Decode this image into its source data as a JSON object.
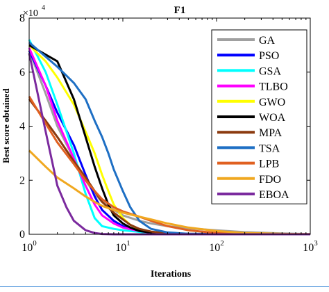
{
  "chart_data": {
    "type": "line",
    "title": "F1",
    "xlabel": "Iterations",
    "ylabel": "Best score obtained",
    "x_scale": "log",
    "xlim": [
      1,
      1000
    ],
    "ylim": [
      0,
      80000
    ],
    "x_ticks": [
      {
        "value": 1,
        "base": "10",
        "exp": "0"
      },
      {
        "value": 10,
        "base": "10",
        "exp": "1"
      },
      {
        "value": 100,
        "base": "10",
        "exp": "2"
      },
      {
        "value": 1000,
        "base": "10",
        "exp": "3"
      }
    ],
    "y_ticks": [
      {
        "value": 0,
        "label": "0"
      },
      {
        "value": 20000,
        "label": "2"
      },
      {
        "value": 40000,
        "label": "4"
      },
      {
        "value": 60000,
        "label": "6"
      },
      {
        "value": 80000,
        "label": "8"
      }
    ],
    "y_multiplier": {
      "base": "×10",
      "exp": "4"
    },
    "legend_position": "top-right",
    "grid": false,
    "series": [
      {
        "name": "GA",
        "color": "#a0a0a0",
        "points": [
          [
            1,
            68000
          ],
          [
            1.5,
            52000
          ],
          [
            2,
            40000
          ],
          [
            3,
            28000
          ],
          [
            4,
            20000
          ],
          [
            5,
            15000
          ],
          [
            6,
            12000
          ],
          [
            8,
            9000
          ],
          [
            10,
            7000
          ],
          [
            15,
            5000
          ],
          [
            20,
            4000
          ],
          [
            30,
            3000
          ],
          [
            50,
            2200
          ],
          [
            100,
            1500
          ],
          [
            200,
            800
          ],
          [
            500,
            300
          ],
          [
            1000,
            100
          ]
        ]
      },
      {
        "name": "PSO",
        "color": "#0000ff",
        "points": [
          [
            1,
            68000
          ],
          [
            1.5,
            55000
          ],
          [
            2,
            45000
          ],
          [
            3,
            33000
          ],
          [
            4,
            22000
          ],
          [
            5,
            14000
          ],
          [
            6,
            9000
          ],
          [
            8,
            5000
          ],
          [
            10,
            3000
          ],
          [
            12,
            2000
          ],
          [
            15,
            1000
          ],
          [
            20,
            500
          ],
          [
            30,
            200
          ],
          [
            50,
            100
          ],
          [
            100,
            50
          ],
          [
            1000,
            0
          ]
        ]
      },
      {
        "name": "GSA",
        "color": "#00ffff",
        "points": [
          [
            1,
            72000
          ],
          [
            1.5,
            60000
          ],
          [
            2,
            48000
          ],
          [
            3,
            30000
          ],
          [
            4,
            15000
          ],
          [
            5,
            6000
          ],
          [
            6,
            3000
          ],
          [
            8,
            2000
          ],
          [
            10,
            1500
          ],
          [
            20,
            500
          ],
          [
            50,
            100
          ],
          [
            1000,
            0
          ]
        ]
      },
      {
        "name": "TLBO",
        "color": "#ff00ff",
        "points": [
          [
            1,
            69000
          ],
          [
            1.5,
            55000
          ],
          [
            2,
            42000
          ],
          [
            3,
            28000
          ],
          [
            4,
            18000
          ],
          [
            5,
            11000
          ],
          [
            6,
            7000
          ],
          [
            8,
            4000
          ],
          [
            10,
            2500
          ],
          [
            15,
            1200
          ],
          [
            20,
            600
          ],
          [
            30,
            200
          ],
          [
            50,
            50
          ],
          [
            1000,
            0
          ]
        ]
      },
      {
        "name": "GWO",
        "color": "#ffff00",
        "points": [
          [
            1,
            70000
          ],
          [
            1.5,
            64000
          ],
          [
            2,
            58000
          ],
          [
            3,
            48000
          ],
          [
            4,
            38000
          ],
          [
            5,
            30000
          ],
          [
            6,
            22000
          ],
          [
            7,
            16000
          ],
          [
            8,
            11000
          ],
          [
            10,
            6000
          ],
          [
            12,
            3500
          ],
          [
            15,
            1800
          ],
          [
            20,
            800
          ],
          [
            30,
            300
          ],
          [
            50,
            100
          ],
          [
            1000,
            0
          ]
        ]
      },
      {
        "name": "WOA",
        "color": "#000000",
        "points": [
          [
            1,
            70000
          ],
          [
            2,
            64000
          ],
          [
            3,
            50000
          ],
          [
            4,
            36000
          ],
          [
            5,
            25000
          ],
          [
            6,
            17000
          ],
          [
            7,
            11000
          ],
          [
            8,
            7000
          ],
          [
            10,
            4000
          ],
          [
            12,
            2500
          ],
          [
            15,
            1200
          ],
          [
            20,
            600
          ],
          [
            30,
            200
          ],
          [
            1000,
            0
          ]
        ]
      },
      {
        "name": "MPA",
        "color": "#8b3a0f",
        "points": [
          [
            1,
            50000
          ],
          [
            1.5,
            42000
          ],
          [
            2,
            36000
          ],
          [
            3,
            27000
          ],
          [
            4,
            21000
          ],
          [
            5,
            16000
          ],
          [
            6,
            12000
          ],
          [
            8,
            8000
          ],
          [
            10,
            5500
          ],
          [
            12,
            3500
          ],
          [
            15,
            2000
          ],
          [
            20,
            1000
          ],
          [
            30,
            300
          ],
          [
            50,
            100
          ],
          [
            1000,
            0
          ]
        ]
      },
      {
        "name": "TSA",
        "color": "#1e6fc4",
        "points": [
          [
            1,
            71000
          ],
          [
            2,
            62000
          ],
          [
            3,
            56000
          ],
          [
            4,
            50000
          ],
          [
            5,
            42000
          ],
          [
            6,
            36000
          ],
          [
            7,
            30000
          ],
          [
            8,
            24000
          ],
          [
            10,
            16000
          ],
          [
            12,
            10000
          ],
          [
            15,
            5000
          ],
          [
            20,
            2000
          ],
          [
            30,
            700
          ],
          [
            50,
            200
          ],
          [
            100,
            50
          ],
          [
            1000,
            0
          ]
        ]
      },
      {
        "name": "LPB",
        "color": "#e06020",
        "points": [
          [
            1,
            51000
          ],
          [
            1.5,
            41000
          ],
          [
            2,
            34000
          ],
          [
            3,
            26000
          ],
          [
            4,
            20000
          ],
          [
            5,
            16000
          ],
          [
            6,
            13000
          ],
          [
            8,
            10000
          ],
          [
            10,
            8500
          ],
          [
            15,
            6500
          ],
          [
            20,
            5000
          ],
          [
            30,
            3000
          ],
          [
            50,
            1500
          ],
          [
            100,
            500
          ],
          [
            200,
            150
          ],
          [
            1000,
            0
          ]
        ]
      },
      {
        "name": "FDO",
        "color": "#f0a820",
        "points": [
          [
            1,
            31000
          ],
          [
            1.5,
            25000
          ],
          [
            2,
            21000
          ],
          [
            3,
            17000
          ],
          [
            4,
            14000
          ],
          [
            5,
            12000
          ],
          [
            6,
            10500
          ],
          [
            8,
            9000
          ],
          [
            10,
            8000
          ],
          [
            15,
            6500
          ],
          [
            20,
            5500
          ],
          [
            30,
            4000
          ],
          [
            50,
            2500
          ],
          [
            100,
            1200
          ],
          [
            200,
            500
          ],
          [
            500,
            150
          ],
          [
            1000,
            50
          ]
        ]
      },
      {
        "name": "EBOA",
        "color": "#7b2a9e",
        "points": [
          [
            1,
            67000
          ],
          [
            1.5,
            38000
          ],
          [
            2,
            18000
          ],
          [
            2.5,
            10000
          ],
          [
            3,
            5000
          ],
          [
            4,
            1500
          ],
          [
            5,
            500
          ],
          [
            6,
            100
          ],
          [
            8,
            0
          ],
          [
            1000,
            0
          ]
        ]
      }
    ]
  }
}
